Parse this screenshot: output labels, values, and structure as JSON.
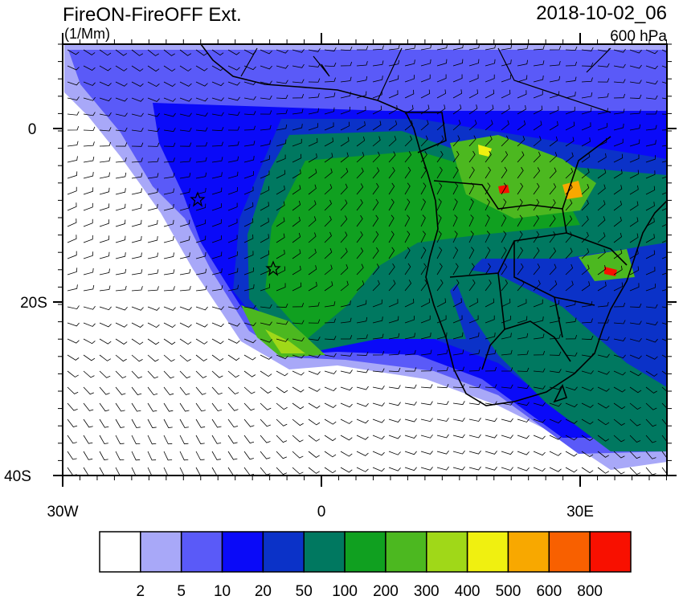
{
  "title": "FireON-FireOFF Ext.",
  "units": "(1/Mm)",
  "time": "2018-10-02_06",
  "level": "600 hPa",
  "lat_ticks": [
    "0",
    "20S",
    "40S"
  ],
  "lon_ticks": [
    "30W",
    "0",
    "30E"
  ],
  "colorbar": {
    "colors": [
      "#ffffff",
      "#a8a8f8",
      "#5a5af8",
      "#0a0af8",
      "#0b32c8",
      "#007860",
      "#10a020",
      "#4cb820",
      "#a0d818",
      "#f0f010",
      "#f8a800",
      "#f86000",
      "#f81000"
    ],
    "labels": [
      "2",
      "5",
      "10",
      "20",
      "50",
      "100",
      "200",
      "300",
      "400",
      "500",
      "600",
      "800"
    ]
  }
}
